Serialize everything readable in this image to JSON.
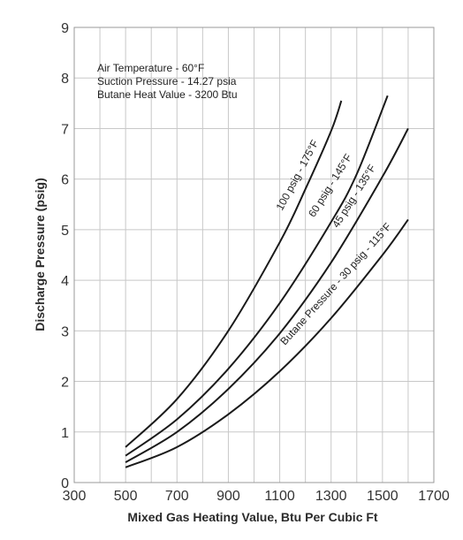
{
  "chart_data": {
    "type": "line",
    "title": "",
    "xlabel": "Mixed Gas Heating Value, Btu Per Cubic Ft",
    "ylabel": "Discharge Pressure (psig)",
    "xlim": [
      300,
      1700
    ],
    "ylim": [
      0,
      9
    ],
    "x_ticks": [
      "300",
      "500",
      "700",
      "900",
      "1100",
      "1300",
      "1500",
      "1700"
    ],
    "y_ticks": [
      "0",
      "1",
      "2",
      "3",
      "4",
      "5",
      "6",
      "7",
      "8",
      "9"
    ],
    "grid": true,
    "legend": "none",
    "notes": [
      "Air Temperature - 60°F",
      "Suction Pressure - 14.27 psia",
      "Butane Heat Value - 3200 Btu"
    ],
    "series": [
      {
        "name": "100 psig - 175°F",
        "x": [
          500,
          700,
          900,
          1100,
          1200,
          1300,
          1340
        ],
        "y": [
          0.7,
          1.65,
          3.0,
          4.75,
          5.8,
          6.95,
          7.55
        ]
      },
      {
        "name": "60 psig - 145°F",
        "x": [
          500,
          700,
          900,
          1100,
          1300,
          1400,
          1520
        ],
        "y": [
          0.53,
          1.25,
          2.25,
          3.55,
          5.15,
          6.1,
          7.65
        ]
      },
      {
        "name": "45 psig - 135°F",
        "x": [
          500,
          700,
          900,
          1100,
          1300,
          1500,
          1600
        ],
        "y": [
          0.4,
          1.0,
          1.85,
          2.95,
          4.35,
          6.05,
          7.0
        ]
      },
      {
        "name": "Butane Pressure - 30 psig - 115°F",
        "x": [
          500,
          700,
          900,
          1100,
          1300,
          1500,
          1600
        ],
        "y": [
          0.3,
          0.7,
          1.35,
          2.2,
          3.25,
          4.5,
          5.2
        ]
      }
    ]
  }
}
